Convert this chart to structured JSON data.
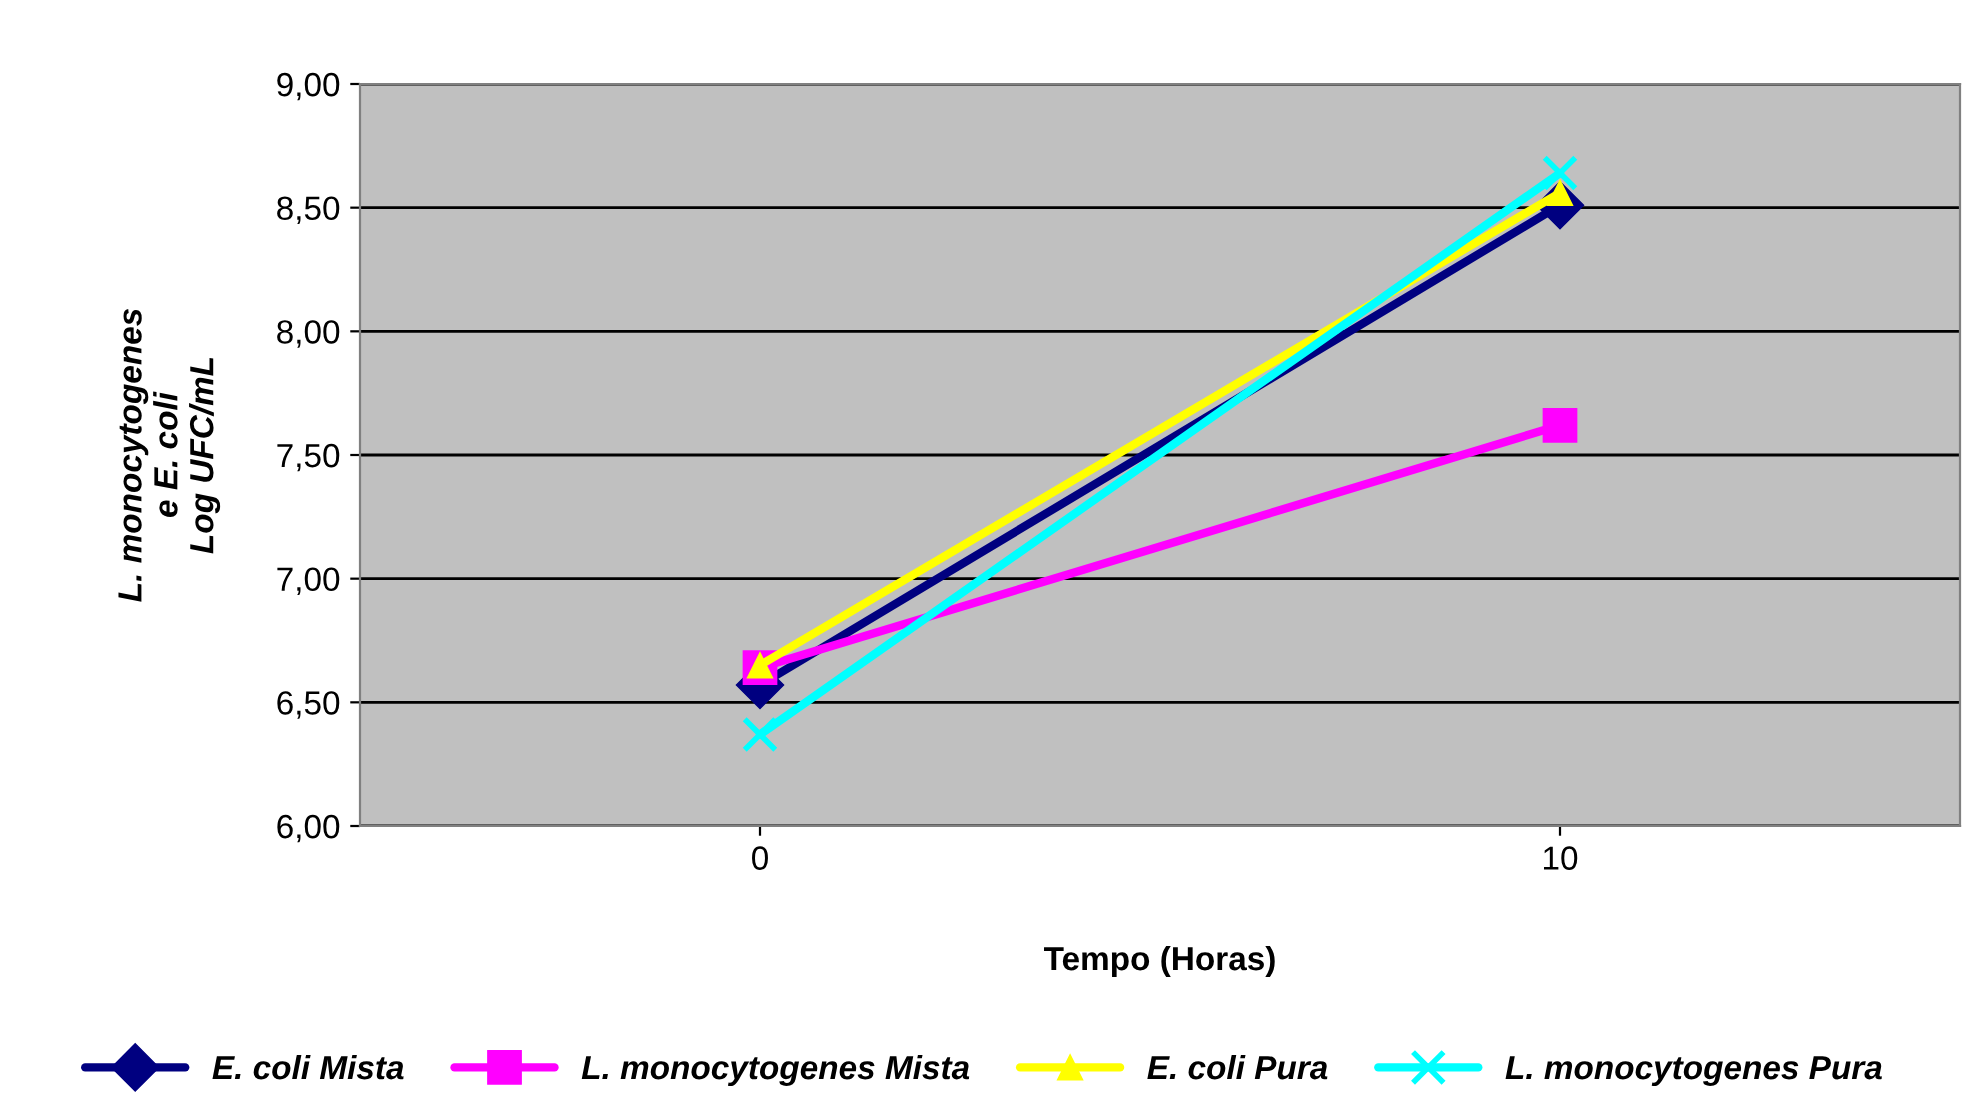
{
  "chart_data": {
    "type": "line",
    "xlabel": "Tempo (Horas)",
    "ylabel": "L. monocytogenes\ne E. coli\nLog UFC/mL",
    "categories": [
      "0",
      "10"
    ],
    "series": [
      {
        "name": "E. coli Mista",
        "color": "#000080",
        "marker": "diamond",
        "values": [
          6.57,
          8.51
        ]
      },
      {
        "name": "L. monocytogenes Mista",
        "color": "#ff00ff",
        "marker": "square",
        "values": [
          6.64,
          7.62
        ]
      },
      {
        "name": "E. coli Pura",
        "color": "#ffff00",
        "marker": "triangle",
        "values": [
          6.65,
          8.56
        ]
      },
      {
        "name": "L. monocytogenes Pura",
        "color": "#00ffff",
        "marker": "cross",
        "values": [
          6.37,
          8.64
        ]
      }
    ],
    "ylim": [
      6,
      9
    ],
    "yticks": [
      {
        "value": 6,
        "label": "6,00"
      },
      {
        "value": 6.5,
        "label": "6,50"
      },
      {
        "value": 7,
        "label": "7,00"
      },
      {
        "value": 7.5,
        "label": "7,50"
      },
      {
        "value": 8,
        "label": "8,00"
      },
      {
        "value": 8.5,
        "label": "8,50"
      },
      {
        "value": 9,
        "label": "9,00"
      }
    ],
    "grid": "y",
    "legend": "bottom"
  }
}
